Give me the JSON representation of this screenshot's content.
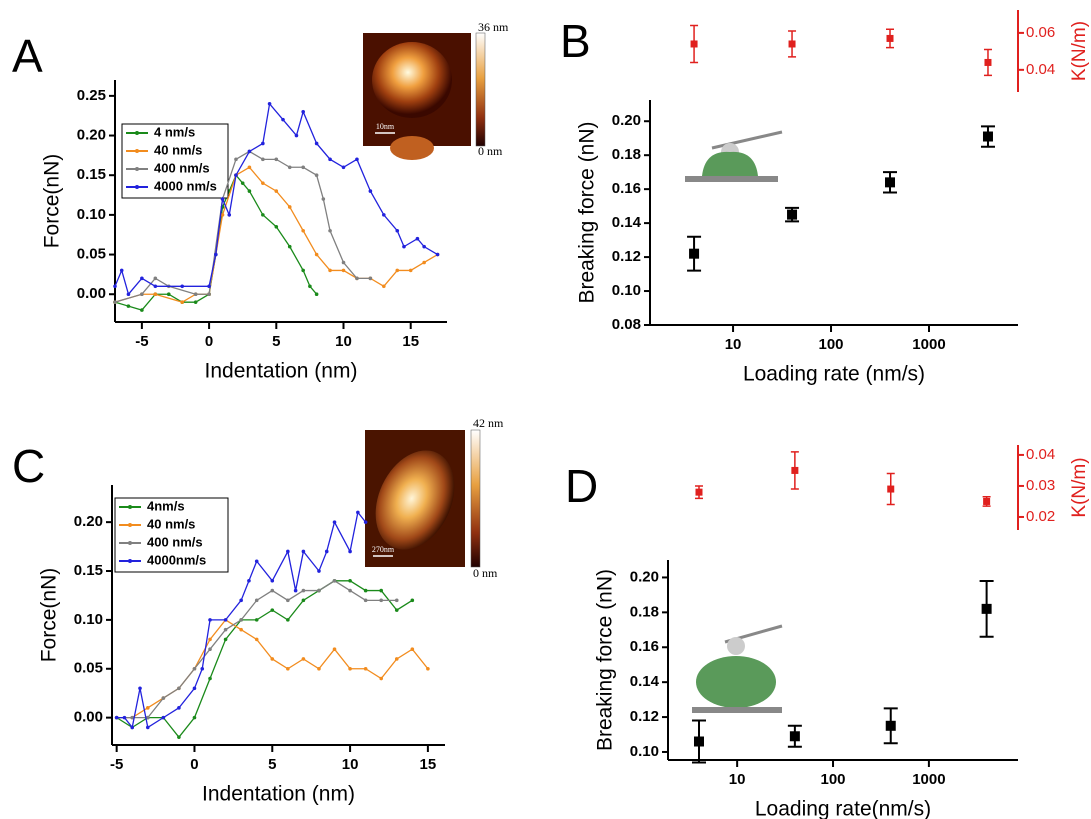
{
  "chart_data": [
    {
      "type": "line",
      "panel": "A",
      "xlabel": "Indentation (nm)",
      "ylabel": "Force(nN)",
      "xlim": [
        -7,
        17.7
      ],
      "xticks": [
        -5,
        0,
        5,
        10,
        15
      ],
      "ylim": [
        -0.035,
        0.27
      ],
      "yticks": [
        {
          "value": 0,
          "label": "0.00"
        },
        0.05,
        {
          "value": 0.1,
          "label": "0.10"
        },
        0.15,
        {
          "value": 0.2,
          "label": "0.20"
        },
        0.25
      ],
      "inset": {
        "top_label": "36 nm",
        "bottom_label": "0 nm",
        "scale_label": "10nm"
      },
      "series": [
        {
          "name": "4 nm/s",
          "color": "#1a8a1a",
          "x": [
            -7,
            -6,
            -5,
            -4,
            -3,
            -2,
            -1,
            0,
            0.5,
            1,
            1.5,
            2,
            2.5,
            3,
            4,
            5,
            6,
            7,
            7.5,
            8
          ],
          "values": [
            -0.01,
            -0.015,
            -0.02,
            0.0,
            0.0,
            -0.01,
            -0.01,
            0.0,
            0.05,
            0.11,
            0.13,
            0.15,
            0.14,
            0.13,
            0.1,
            0.085,
            0.06,
            0.03,
            0.01,
            0.0
          ]
        },
        {
          "name": "40 nm/s",
          "color": "#f28c1e",
          "x": [
            -7,
            -5,
            -4,
            -2,
            -1,
            0,
            1,
            2,
            3,
            4,
            5,
            6,
            7,
            8,
            9,
            10,
            11,
            12,
            13,
            14,
            15,
            16,
            17
          ],
          "values": [
            -0.01,
            0.0,
            0.0,
            -0.01,
            0.0,
            0.0,
            0.1,
            0.15,
            0.16,
            0.14,
            0.13,
            0.11,
            0.08,
            0.05,
            0.03,
            0.03,
            0.02,
            0.02,
            0.01,
            0.03,
            0.03,
            0.04,
            0.05
          ]
        },
        {
          "name": "400 nm/s",
          "color": "#808080",
          "x": [
            -7,
            -5,
            -4,
            -3,
            -1,
            0,
            1,
            2,
            3,
            4,
            5,
            6,
            7,
            8,
            8.5,
            9,
            10,
            11,
            12
          ],
          "values": [
            -0.01,
            0.0,
            0.02,
            0.01,
            0.0,
            0.0,
            0.12,
            0.17,
            0.18,
            0.17,
            0.17,
            0.16,
            0.16,
            0.15,
            0.12,
            0.08,
            0.04,
            0.02,
            0.02
          ]
        },
        {
          "name": "4000 nm/s",
          "color": "#2222dd",
          "x": [
            -7,
            -6.5,
            -6,
            -5,
            -4,
            -2,
            0,
            0.5,
            1,
            1.5,
            2,
            3,
            4,
            4.5,
            5.5,
            6.5,
            7,
            8,
            9,
            10,
            11,
            12,
            13,
            14,
            14.5,
            15.5,
            16,
            17
          ],
          "values": [
            0.01,
            0.03,
            0.0,
            0.02,
            0.01,
            0.01,
            0.01,
            0.05,
            0.12,
            0.1,
            0.15,
            0.18,
            0.19,
            0.24,
            0.22,
            0.2,
            0.23,
            0.19,
            0.17,
            0.16,
            0.17,
            0.13,
            0.1,
            0.08,
            0.06,
            0.07,
            0.06,
            0.05
          ]
        }
      ]
    },
    {
      "type": "scatter",
      "panel": "B",
      "xlabel": "Loading rate (nm/s)",
      "ylabel": "Breaking force (nN)",
      "y2label": "K(N/m)",
      "log_x": true,
      "xlim": [
        1.42,
        8100
      ],
      "xticks": [
        10,
        100,
        1000
      ],
      "ylim": [
        0.08,
        0.2125
      ],
      "yticks": [
        0.08,
        {
          "value": 0.1,
          "label": "0.10"
        },
        0.12,
        0.14,
        0.16,
        0.18,
        {
          "value": 0.2,
          "label": "0.20"
        }
      ],
      "y2lim": [
        0.028,
        0.0724
      ],
      "y2ticks": [
        {
          "value": 0.04,
          "label": "0.04"
        },
        {
          "value": 0.06,
          "label": "0.06"
        }
      ],
      "x": [
        4,
        40,
        400,
        4000
      ],
      "values": [
        0.122,
        0.145,
        0.164,
        0.191
      ],
      "errors": [
        0.01,
        0.004,
        0.006,
        0.006
      ],
      "color": "#000000",
      "k_values": [
        0.054,
        0.054,
        0.057,
        0.044
      ],
      "k_errors": [
        0.01,
        0.007,
        0.005,
        0.007
      ],
      "k_color": "#e0201e"
    },
    {
      "type": "line",
      "panel": "C",
      "xlabel": "Indentation (nm)",
      "ylabel": "Force(nN)",
      "xlim": [
        -5.3,
        16.1
      ],
      "xticks": [
        -5,
        0,
        5,
        10,
        15
      ],
      "ylim": [
        -0.028,
        0.238
      ],
      "yticks": [
        {
          "value": 0,
          "label": "0.00"
        },
        0.05,
        {
          "value": 0.1,
          "label": "0.10"
        },
        0.15,
        {
          "value": 0.2,
          "label": "0.20"
        }
      ],
      "inset": {
        "top_label": "42 nm",
        "bottom_label": "0 nm",
        "scale_label": "270nm"
      },
      "series": [
        {
          "name": "4nm/s",
          "color": "#1a8a1a",
          "x": [
            -5,
            -4,
            -3,
            -2,
            -1,
            0,
            1,
            2,
            3,
            4,
            5,
            6,
            7,
            8,
            9,
            10,
            11,
            12,
            13,
            14
          ],
          "values": [
            0.0,
            -0.01,
            0.0,
            0.0,
            -0.02,
            0.0,
            0.04,
            0.08,
            0.1,
            0.1,
            0.11,
            0.1,
            0.12,
            0.13,
            0.14,
            0.14,
            0.13,
            0.13,
            0.11,
            0.12
          ]
        },
        {
          "name": "40 nm/s",
          "color": "#f28c1e",
          "x": [
            -5,
            -4,
            -3,
            -2,
            -1,
            0,
            1,
            2,
            3,
            4,
            5,
            6,
            7,
            8,
            9,
            10,
            11,
            12,
            13,
            14,
            15
          ],
          "values": [
            0.0,
            0.0,
            0.01,
            0.02,
            0.03,
            0.05,
            0.08,
            0.1,
            0.09,
            0.08,
            0.06,
            0.05,
            0.06,
            0.05,
            0.07,
            0.05,
            0.05,
            0.04,
            0.06,
            0.07,
            0.05
          ]
        },
        {
          "name": "400 nm/s",
          "color": "#808080",
          "x": [
            -5,
            -4,
            -3,
            -2,
            -1,
            0,
            1,
            2,
            3,
            4,
            5,
            6,
            7,
            8,
            9,
            10,
            11,
            12,
            13
          ],
          "values": [
            0.0,
            0.0,
            0.0,
            0.02,
            0.03,
            0.05,
            0.07,
            0.09,
            0.1,
            0.12,
            0.13,
            0.12,
            0.13,
            0.13,
            0.14,
            0.13,
            0.12,
            0.12,
            0.12
          ]
        },
        {
          "name": "4000nm/s",
          "color": "#2222dd",
          "x": [
            -5,
            -4.5,
            -4,
            -3.5,
            -3,
            -2,
            -1,
            0,
            0.5,
            1,
            2,
            3,
            3.5,
            4,
            5,
            6,
            6.5,
            7,
            8,
            8.5,
            9,
            10,
            10.5,
            11
          ],
          "values": [
            0.0,
            0.0,
            -0.01,
            0.03,
            -0.01,
            0.0,
            0.01,
            0.03,
            0.05,
            0.1,
            0.1,
            0.12,
            0.14,
            0.16,
            0.14,
            0.17,
            0.13,
            0.17,
            0.15,
            0.17,
            0.2,
            0.17,
            0.21,
            0.2
          ]
        }
      ]
    },
    {
      "type": "scatter",
      "panel": "D",
      "xlabel": "Loading rate(nm/s)",
      "ylabel": "Breaking force (nN)",
      "y2label": "K(N/m)",
      "log_x": true,
      "xlim": [
        1.9,
        8500
      ],
      "xticks": [
        10,
        100,
        1000
      ],
      "ylim": [
        0.0954,
        0.21
      ],
      "yticks": [
        {
          "value": 0.1,
          "label": "0.10"
        },
        0.12,
        0.14,
        0.16,
        0.18,
        {
          "value": 0.2,
          "label": "0.20"
        }
      ],
      "y2lim": [
        0.0158,
        0.0432
      ],
      "y2ticks": [
        {
          "value": 0.02,
          "label": "0.02"
        },
        {
          "value": 0.03,
          "label": "0.03"
        },
        {
          "value": 0.04,
          "label": "0.04"
        }
      ],
      "x": [
        4,
        40,
        400,
        4000
      ],
      "values": [
        0.106,
        0.109,
        0.115,
        0.182
      ],
      "errors": [
        0.012,
        0.006,
        0.01,
        0.016
      ],
      "color": "#000000",
      "k_values": [
        0.028,
        0.035,
        0.029,
        0.025
      ],
      "k_errors": [
        0.002,
        0.006,
        0.005,
        0.0015
      ],
      "k_color": "#e0201e"
    }
  ]
}
